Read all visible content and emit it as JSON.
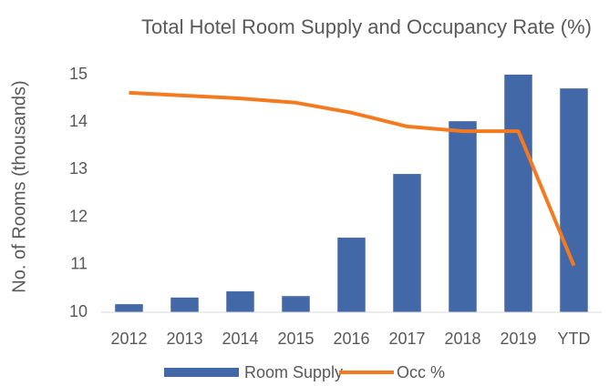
{
  "chart_data": {
    "type": "combo",
    "title": "Total Hotel Room Supply and Occupancy Rate (%)",
    "y_label": "No. of Rooms (thousands)",
    "categories": [
      "2012",
      "2013",
      "2014",
      "2015",
      "2016",
      "2017",
      "2018",
      "2019",
      "YTD"
    ],
    "series": [
      {
        "name": "Room Supply",
        "type": "bar",
        "color": "#4268a8",
        "values": [
          10.17,
          10.31,
          10.44,
          10.34,
          11.57,
          12.91,
          14.02,
          15.0,
          14.71
        ]
      },
      {
        "name": "Occ %",
        "type": "line",
        "color": "#f47a20",
        "values": [
          14.62,
          14.56,
          14.5,
          14.41,
          14.2,
          13.91,
          13.81,
          13.81,
          10.98
        ]
      }
    ],
    "ylim": [
      10,
      15
    ],
    "yticks": [
      10,
      11,
      12,
      13,
      14,
      15
    ],
    "grid": false,
    "legend": "bottom"
  }
}
